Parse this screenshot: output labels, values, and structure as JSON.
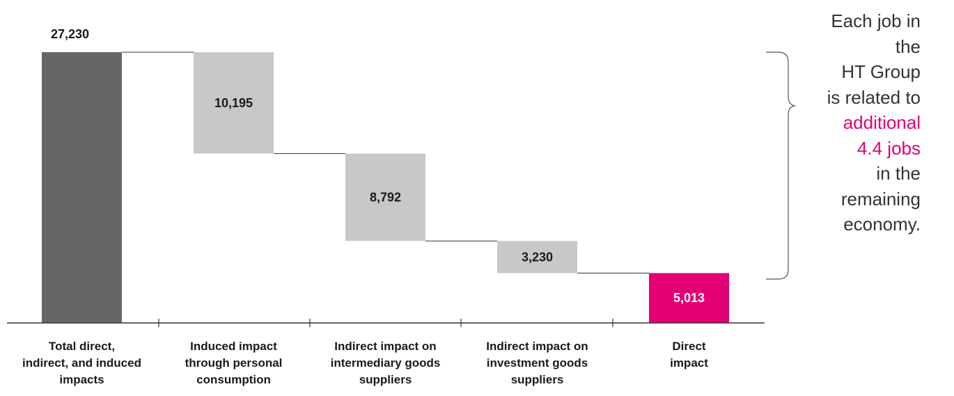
{
  "chart_data": {
    "type": "bar",
    "subtype": "waterfall",
    "categories": [
      [
        "Total direct,",
        "indirect, and induced",
        "impacts"
      ],
      [
        "Induced impact",
        "through personal",
        "consumption"
      ],
      [
        "Indirect impact on",
        "intermediary goods",
        "suppliers"
      ],
      [
        "Indirect impact on",
        "investment goods",
        "suppliers"
      ],
      [
        "Direct",
        "impact"
      ]
    ],
    "values": [
      27230,
      10195,
      8792,
      3230,
      5013
    ],
    "value_labels": [
      "27,230",
      "10,195",
      "8,792",
      "3,230",
      "5,013"
    ],
    "kinds": [
      "total",
      "decrement",
      "decrement",
      "decrement",
      "final"
    ],
    "colors": {
      "total": "#666666",
      "decrement": "#c8c8c8",
      "final": "#e20074",
      "axis": "#333333",
      "connector": "#333333",
      "label_dark": "#1a1a1a",
      "label_light": "#ffffff"
    },
    "ylim": [
      0,
      27230
    ],
    "grid": false,
    "legend": "none"
  },
  "annotation": {
    "lines": [
      {
        "text": "Each job in",
        "accent": false
      },
      {
        "text": "the",
        "accent": false
      },
      {
        "text": "HT Group",
        "accent": false
      },
      {
        "text": "is related to",
        "accent": false
      },
      {
        "text": "additional",
        "accent": true
      },
      {
        "text": "4.4 jobs",
        "accent": true
      },
      {
        "text": "in the",
        "accent": false
      },
      {
        "text": "remaining",
        "accent": false
      },
      {
        "text": "economy.",
        "accent": false
      }
    ],
    "accent_color": "#e20074"
  }
}
